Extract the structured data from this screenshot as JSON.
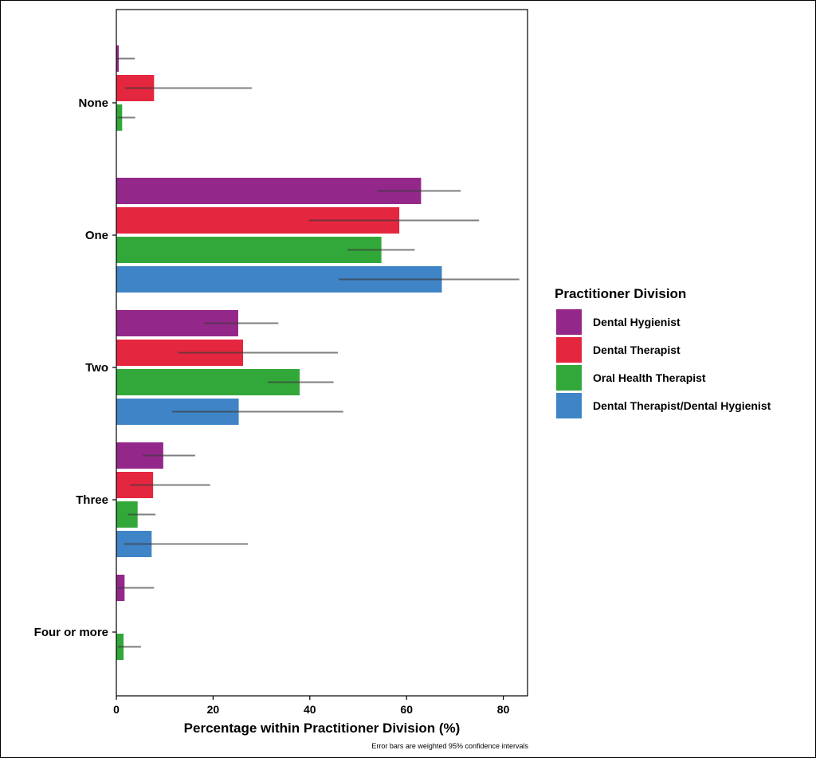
{
  "chart_data": {
    "type": "bar",
    "orientation": "horizontal",
    "categories": [
      "None",
      "One",
      "Two",
      "Three",
      "Four or more"
    ],
    "series": [
      {
        "name": "Dental Hygienist",
        "color": "#94278a",
        "values": [
          0.5,
          63,
          25.2,
          9.7,
          1.7
        ],
        "ci_low": [
          0.1,
          54,
          18.2,
          5.5,
          0.3
        ],
        "ci_high": [
          3.8,
          71.2,
          33.5,
          16.3,
          7.8
        ]
      },
      {
        "name": "Dental Therapist",
        "color": "#e5263f",
        "values": [
          7.8,
          58.5,
          26.2,
          7.6,
          null
        ],
        "ci_low": [
          1.8,
          39.8,
          12.8,
          2.9,
          null
        ],
        "ci_high": [
          28,
          75,
          45.8,
          19.4,
          null
        ]
      },
      {
        "name": "Oral Health Therapist",
        "color": "#33a83a",
        "values": [
          1.2,
          54.8,
          37.9,
          4.4,
          1.5
        ],
        "ci_low": [
          0.3,
          47.8,
          31.3,
          2.4,
          0.3
        ],
        "ci_high": [
          3.9,
          61.7,
          44.9,
          8.1,
          5.1
        ]
      },
      {
        "name": "Dental Therapist/Dental Hygienist",
        "color": "#3f84c6",
        "values": [
          null,
          67.3,
          25.3,
          7.3,
          null
        ],
        "ci_low": [
          null,
          46,
          11.5,
          1.6,
          null
        ],
        "ci_high": [
          null,
          83.3,
          46.9,
          27.2,
          null
        ]
      }
    ],
    "xlabel": "Percentage within Practitioner Division (%)",
    "ylabel": "",
    "xlim": [
      0,
      85
    ],
    "xticks": [
      0,
      20,
      40,
      60,
      80
    ],
    "grid": false,
    "legend": {
      "title": "Practitioner Division",
      "placement": "right"
    },
    "caption": "Error bars are weighted 95% confidence intervals"
  }
}
